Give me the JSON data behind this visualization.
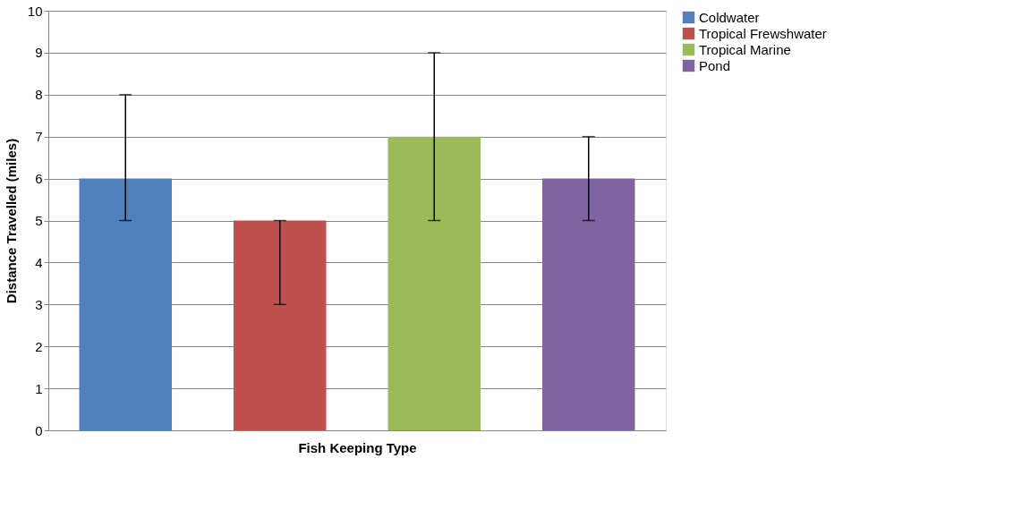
{
  "chart_data": {
    "type": "bar",
    "categories": [
      null,
      null,
      null,
      null
    ],
    "xlabel": "Fish Keeping Type",
    "ylabel": "Distance Travelled (miles)",
    "ylim": [
      0,
      10
    ],
    "yticks": [
      0,
      1,
      2,
      3,
      4,
      5,
      6,
      7,
      8,
      9,
      10
    ],
    "grid": "y",
    "legend": "right",
    "tick_labels": "y",
    "series": [
      {
        "name": "Coldwater",
        "color": "#4f81bd",
        "values": [
          6,
          null,
          null,
          null
        ],
        "errors": [
          [
            5,
            8
          ],
          null,
          null,
          null
        ]
      },
      {
        "name": "Tropical Frewshwater",
        "color": "#c0504d",
        "values": [
          null,
          5,
          null,
          null
        ],
        "errors": [
          null,
          [
            3,
            5
          ],
          null,
          null
        ]
      },
      {
        "name": "Tropical Marine",
        "color": "#9bbb59",
        "values": [
          null,
          null,
          7,
          null
        ],
        "errors": [
          null,
          null,
          [
            5,
            9
          ],
          null
        ]
      },
      {
        "name": "Pond",
        "color": "#8064a2",
        "values": [
          null,
          null,
          null,
          6
        ],
        "errors": [
          null,
          null,
          null,
          [
            5,
            7
          ]
        ]
      }
    ]
  }
}
